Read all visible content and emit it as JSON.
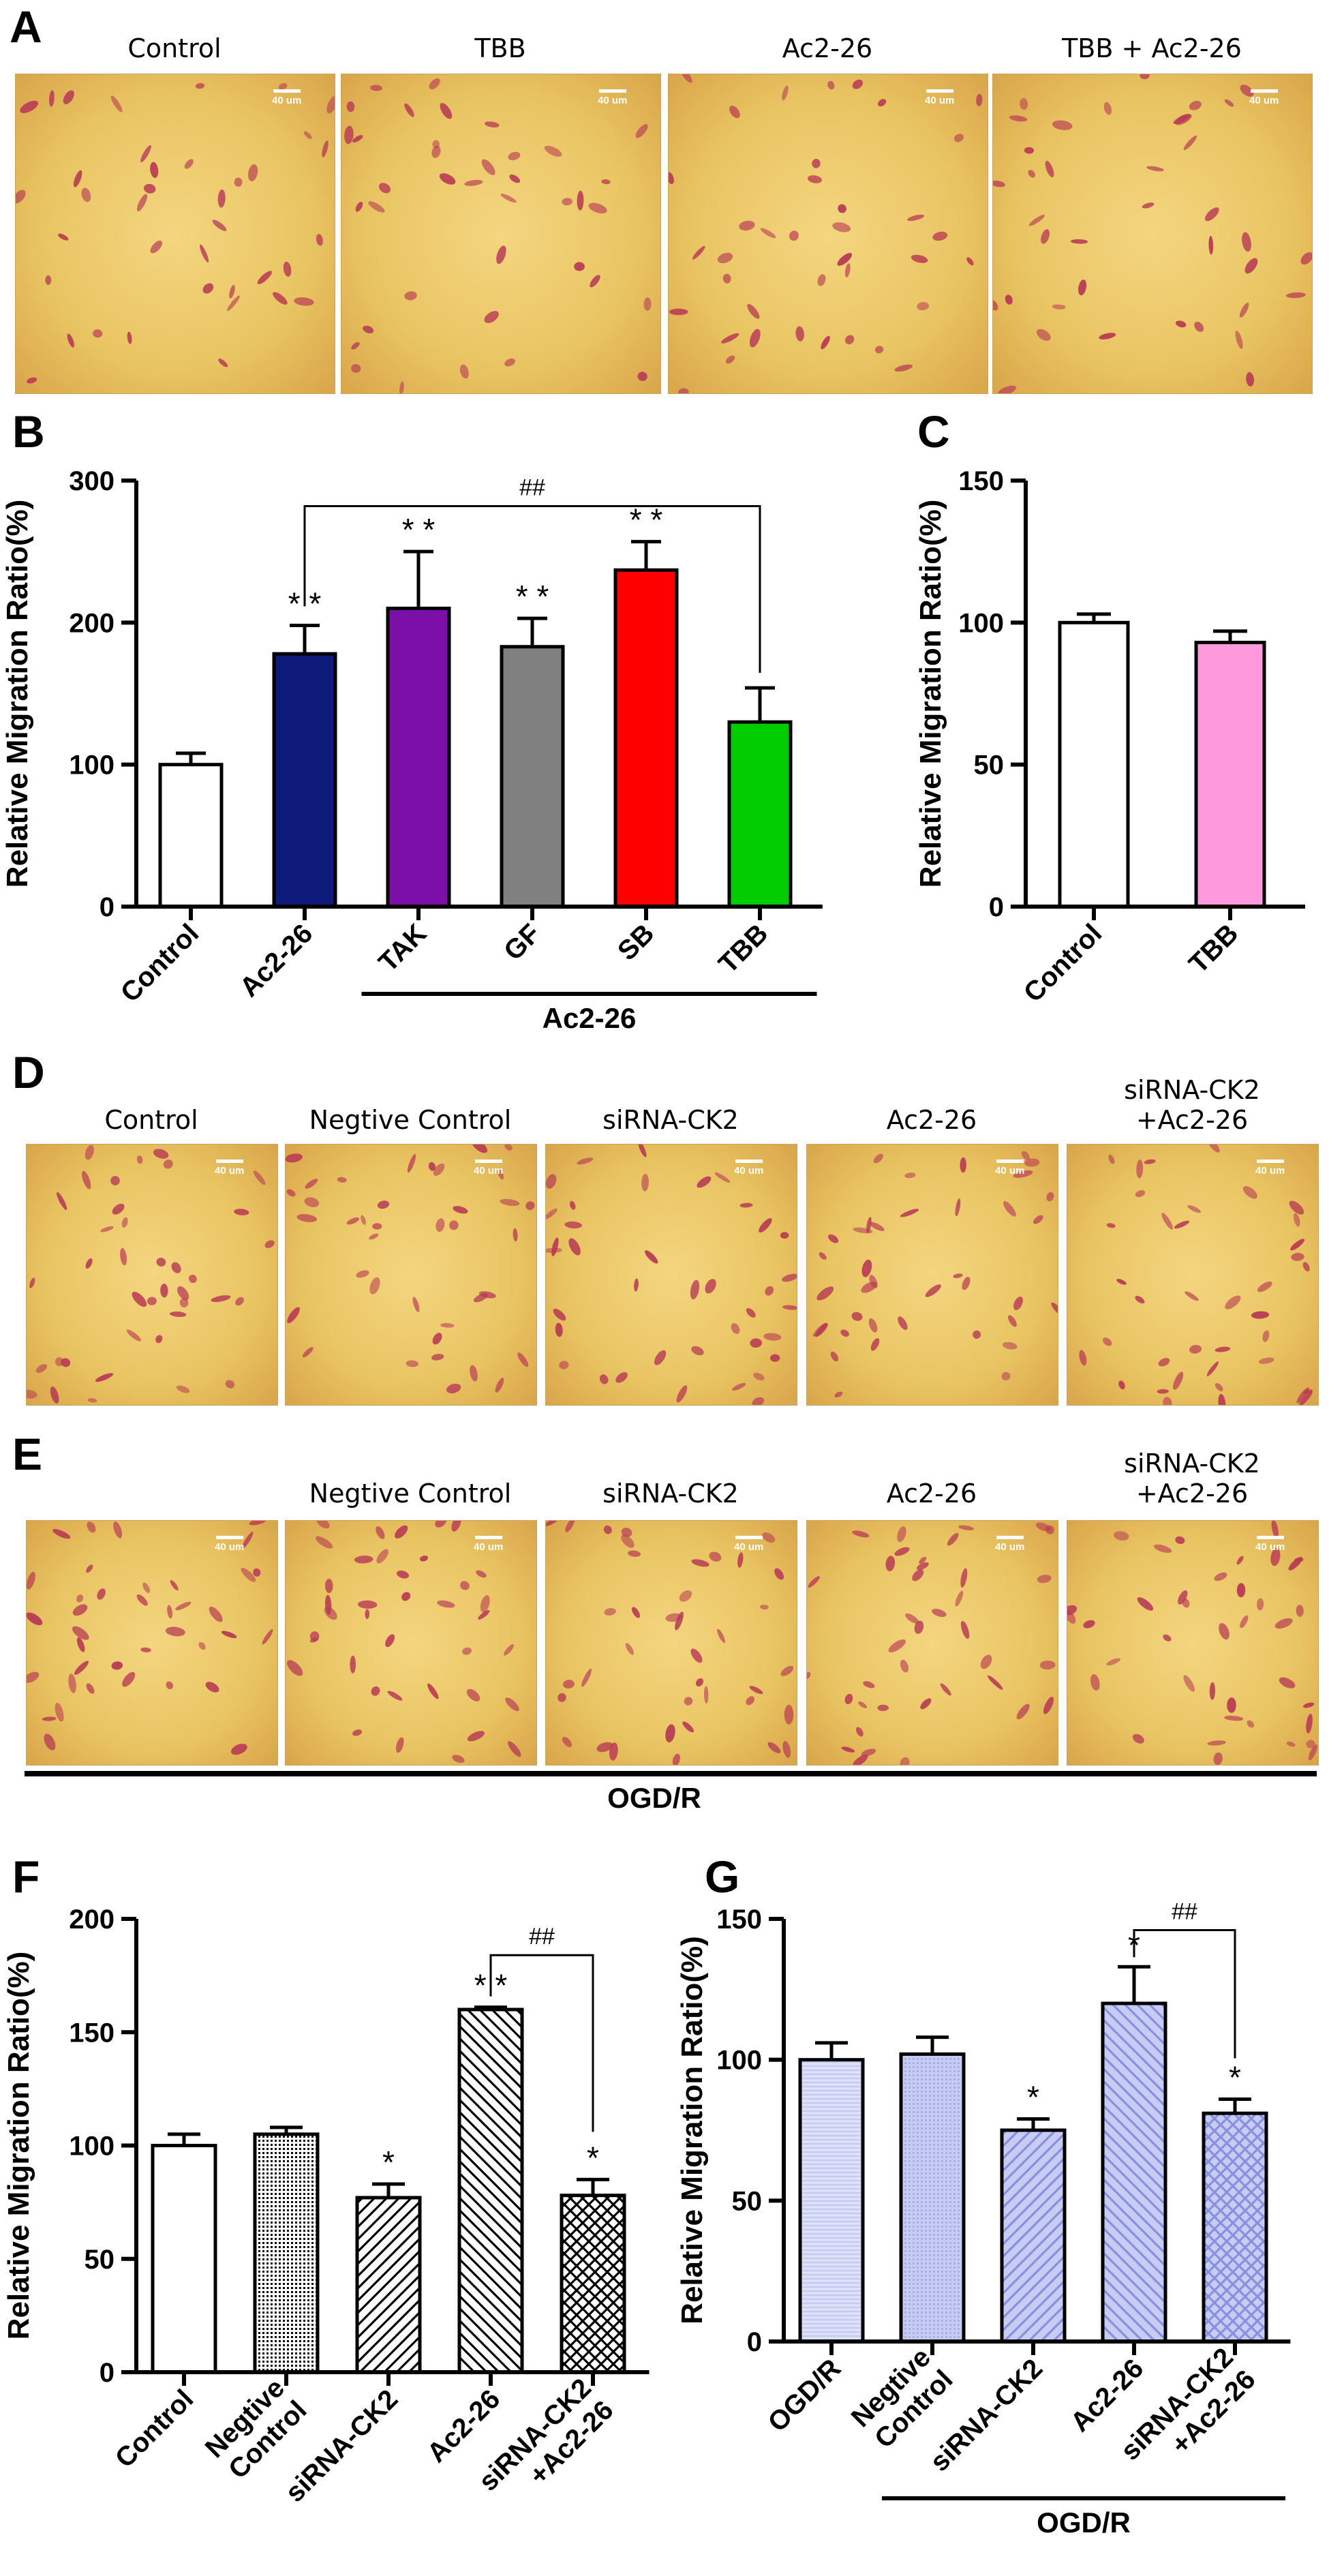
{
  "panel_a": {
    "label": "A",
    "images": [
      "Control",
      "TBB",
      "Ac2-26",
      "TBB +  Ac2-26"
    ],
    "scale": "40 um"
  },
  "panel_d": {
    "label": "D",
    "images": [
      "Control",
      "Negtive Control",
      "siRNA-CK2",
      "Ac2-26",
      "siRNA-CK2\n+Ac2-26"
    ],
    "scale": "40 um"
  },
  "panel_e": {
    "label": "E",
    "images": [
      "",
      "Negtive Control",
      "siRNA-CK2",
      "Ac2-26",
      "siRNA-CK2\n+Ac2-26"
    ],
    "scale": "40 um",
    "bottom_label": "OGD/R"
  },
  "colors": {
    "micro_bg": "#e9c462",
    "cell_stain": "#b83a55",
    "bar_b": [
      "#ffffff",
      "#0d1a7a",
      "#7b0fa8",
      "#808080",
      "#ff0000",
      "#00cc00"
    ],
    "bar_c": [
      "#ffffff",
      "#ff99dd"
    ],
    "bar_g": "#c7ccf2",
    "hatch_g": "#8a90e0"
  },
  "chart_data": [
    {
      "panel": "B",
      "type": "bar",
      "ylabel": "Relative Migration Ratio(%)",
      "categories": [
        "Control",
        "Ac2-26",
        "TAK",
        "GF",
        "SB",
        "TBB"
      ],
      "values": [
        100,
        178,
        210,
        183,
        237,
        130
      ],
      "errors": [
        8,
        20,
        40,
        20,
        20,
        24
      ],
      "significance": [
        "",
        "* *",
        "* *",
        "* *",
        "* *",
        ""
      ],
      "bracket": {
        "from": 1,
        "to": 5,
        "label": "##"
      },
      "group_label": "Ac2-26",
      "group_range": [
        2,
        5
      ],
      "ylim": [
        0,
        300
      ],
      "yticks": [
        0,
        100,
        200,
        300
      ]
    },
    {
      "panel": "C",
      "type": "bar",
      "ylabel": "Relative Migration Ratio(%)",
      "categories": [
        "Control",
        "TBB"
      ],
      "values": [
        100,
        93
      ],
      "errors": [
        3,
        4
      ],
      "ylim": [
        0,
        150
      ],
      "yticks": [
        0,
        50,
        100,
        150
      ]
    },
    {
      "panel": "F",
      "type": "bar",
      "ylabel": "Relative Migration Ratio(%)",
      "categories": [
        "Control",
        "Negtive Control",
        "siRNA-CK2",
        "Ac2-26",
        "siRNA-CK2 +Ac2-26"
      ],
      "values": [
        100,
        105,
        77,
        160,
        78
      ],
      "errors": [
        5,
        3,
        6,
        1,
        7
      ],
      "significance": [
        "",
        "",
        "*",
        "* *",
        "*"
      ],
      "bracket": {
        "from": 3,
        "to": 4,
        "label": "##"
      },
      "ylim": [
        0,
        200
      ],
      "yticks": [
        0,
        50,
        100,
        150,
        200
      ]
    },
    {
      "panel": "G",
      "type": "bar",
      "ylabel": "Relative Migration Ratio(%)",
      "categories": [
        "OGD/R",
        "Negtive Control",
        "siRNA-CK2",
        "Ac2-26",
        "siRNA-CK2 +Ac2-26"
      ],
      "values": [
        100,
        102,
        75,
        120,
        81
      ],
      "errors": [
        6,
        6,
        4,
        13,
        5
      ],
      "significance": [
        "",
        "",
        "*",
        "*",
        "*"
      ],
      "bracket": {
        "from": 3,
        "to": 4,
        "label": "##"
      },
      "group_label": "OGD/R",
      "group_range": [
        1,
        4
      ],
      "ylim": [
        0,
        150
      ],
      "yticks": [
        0,
        50,
        100,
        150
      ]
    }
  ]
}
